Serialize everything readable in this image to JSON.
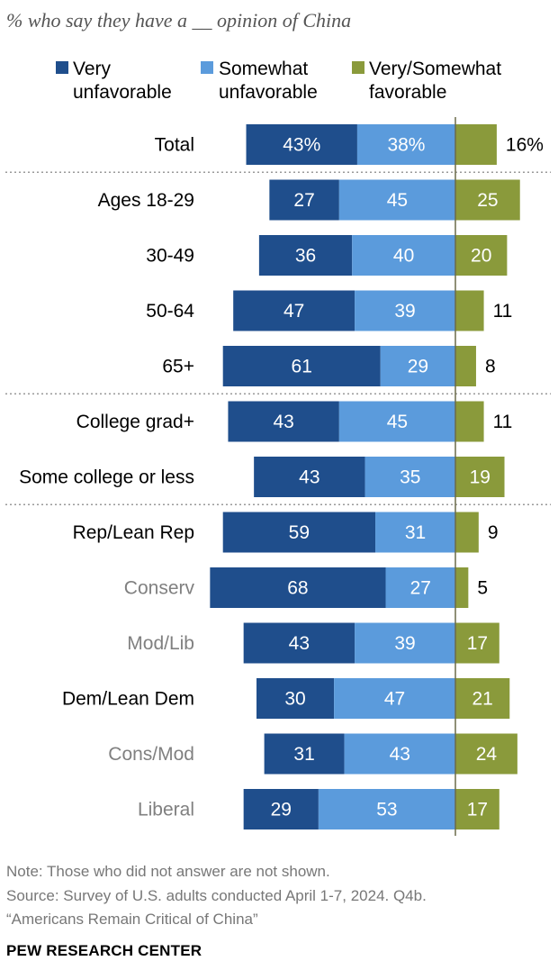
{
  "subtitle": "% who say they have a __ opinion of China",
  "legend": [
    {
      "line1": "Very",
      "line2": "unfavorable",
      "color": "#1f4e8c"
    },
    {
      "line1": "Somewhat",
      "line2": "unfavorable",
      "color": "#5b9bdc"
    },
    {
      "line1": "Very/Somewhat",
      "line2": "favorable",
      "color": "#8a9a3b"
    }
  ],
  "chart_data": {
    "type": "bar",
    "stacked": "diverging",
    "categories": [
      "Total",
      "Ages 18-29",
      "30-49",
      "50-64",
      "65+",
      "College grad+",
      "Some college or less",
      "Rep/Lean Rep",
      "Conserv",
      "Mod/Lib",
      "Dem/Lean Dem",
      "Cons/Mod",
      "Liberal"
    ],
    "category_style": [
      "main",
      "main",
      "main",
      "main",
      "main",
      "main",
      "main",
      "main",
      "sub",
      "sub",
      "main",
      "sub",
      "sub"
    ],
    "series": [
      {
        "name": "Very unfavorable",
        "color": "#1f4e8c",
        "values": [
          43,
          27,
          36,
          47,
          61,
          43,
          43,
          59,
          68,
          43,
          30,
          31,
          29
        ],
        "labels": [
          "43%",
          "27",
          "36",
          "47",
          "61",
          "43",
          "43",
          "59",
          "68",
          "43",
          "30",
          "31",
          "29"
        ]
      },
      {
        "name": "Somewhat unfavorable",
        "color": "#5b9bdc",
        "values": [
          38,
          45,
          40,
          39,
          29,
          45,
          35,
          31,
          27,
          39,
          47,
          43,
          53
        ],
        "labels": [
          "38%",
          "45",
          "40",
          "39",
          "29",
          "45",
          "35",
          "31",
          "27",
          "39",
          "47",
          "43",
          "53"
        ]
      },
      {
        "name": "Very/Somewhat favorable",
        "color": "#8a9a3b",
        "values": [
          16,
          25,
          20,
          11,
          8,
          11,
          19,
          9,
          5,
          17,
          21,
          24,
          17
        ],
        "labels": [
          "16%",
          "25",
          "20",
          "11",
          "8",
          "11",
          "19",
          "9",
          "5",
          "17",
          "21",
          "24",
          "17"
        ]
      }
    ],
    "group_dividers_after": [
      0,
      4,
      6
    ],
    "grid": false
  },
  "notes": {
    "line1": "Note: Those who did not answer are not shown.",
    "line2": "Source: Survey of U.S. adults conducted April 1-7, 2024. Q4b.",
    "line3": "“Americans Remain Critical of China”"
  },
  "brand": "PEW RESEARCH CENTER"
}
